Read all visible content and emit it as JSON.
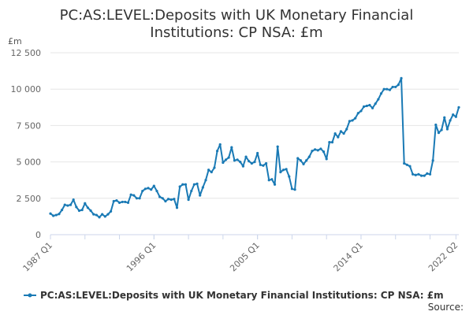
{
  "chart_data": {
    "type": "line",
    "title_line1": "PC:AS:LEVEL:Deposits with UK Monetary Financial",
    "title_line2": "Institutions: CP NSA: £m",
    "ylabel": "£m",
    "ylim": [
      0,
      12500
    ],
    "y_ticks": [
      0,
      2500,
      5000,
      7500,
      10000,
      12500
    ],
    "y_tick_labels": [
      "0",
      "2 500",
      "5 000",
      "7 500",
      "10 000",
      "12 500"
    ],
    "x_tick_labels": [
      "1987 Q1",
      "1996 Q1",
      "2005 Q1",
      "2014 Q1",
      "2022 Q2"
    ],
    "x_tick_index": [
      0,
      36,
      72,
      108,
      141
    ],
    "grid": true,
    "legend_placement": "bottom",
    "color": "#1a7ab5",
    "series": [
      {
        "name": "PC:AS:LEVEL:Deposits with UK Monetary Financial Institutions: CP NSA: £m",
        "values": [
          1450,
          1300,
          1350,
          1420,
          1700,
          2050,
          2000,
          2050,
          2400,
          1900,
          1650,
          1700,
          2150,
          1850,
          1650,
          1400,
          1350,
          1200,
          1400,
          1250,
          1400,
          1600,
          2300,
          2350,
          2200,
          2250,
          2250,
          2200,
          2750,
          2700,
          2500,
          2500,
          3000,
          3150,
          3200,
          3100,
          3350,
          3000,
          2600,
          2500,
          2300,
          2450,
          2400,
          2450,
          1850,
          3300,
          3450,
          3450,
          2400,
          3000,
          3450,
          3500,
          2700,
          3250,
          3750,
          4450,
          4300,
          4600,
          5750,
          6200,
          4950,
          5150,
          5300,
          6000,
          5100,
          5150,
          5000,
          4700,
          5350,
          5050,
          4900,
          5000,
          5600,
          4800,
          4750,
          4900,
          3750,
          3800,
          3450,
          6050,
          4300,
          4450,
          4500,
          4000,
          3150,
          3100,
          5250,
          5100,
          4850,
          5100,
          5350,
          5750,
          5850,
          5800,
          5900,
          5700,
          5200,
          6350,
          6350,
          6950,
          6700,
          7100,
          6950,
          7250,
          7800,
          7850,
          8000,
          8350,
          8500,
          8800,
          8850,
          8900,
          8700,
          9000,
          9300,
          9700,
          10000,
          10000,
          9950,
          10150,
          10150,
          10300,
          10750,
          4900,
          4800,
          4700,
          4150,
          4100,
          4150,
          4050,
          4050,
          4200,
          4150,
          5100,
          7550,
          7000,
          7200,
          8050,
          7250,
          7850,
          8250,
          8100,
          8750
        ]
      }
    ]
  },
  "legend": {
    "label": "PC:AS:LEVEL:Deposits with UK Monetary Financial Institutions: CP NSA: £m"
  },
  "source": {
    "label": "Source:"
  }
}
